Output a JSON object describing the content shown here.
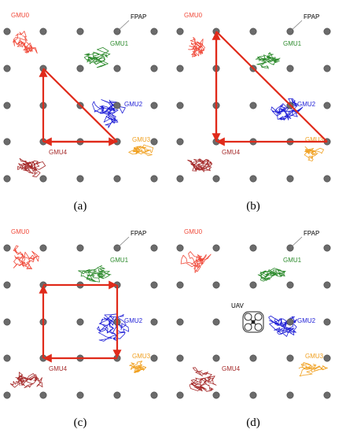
{
  "colors": {
    "gmu0": "#f04a3a",
    "gmu1": "#2e8b2e",
    "gmu2": "#1f1fd6",
    "gmu3": "#f0a020",
    "gmu4": "#a52a2a",
    "path": "#e02a1a",
    "fpap": "#6b6b6b"
  },
  "panels": [
    {
      "caption": "(a)",
      "fpap_label": "FPAP",
      "labels": {
        "gmu0": "GMU0",
        "gmu1": "GMU1",
        "gmu2": "GMU2",
        "gmu3": "GMU3",
        "gmu4": "GMU4"
      },
      "path_shape": "triangle-left"
    },
    {
      "caption": "(b)",
      "fpap_label": "FPAP",
      "labels": {
        "gmu0": "GMU0",
        "gmu1": "GMU1",
        "gmu2": "GMU2",
        "gmu3": "GMU3",
        "gmu4": "GMU4"
      },
      "path_shape": "triangle-large"
    },
    {
      "caption": "(c)",
      "fpap_label": "FPAP",
      "labels": {
        "gmu0": "GMU0",
        "gmu1": "GMU1",
        "gmu2": "GMU2",
        "gmu3": "GMU3",
        "gmu4": "GMU4"
      },
      "path_shape": "square"
    },
    {
      "caption": "(d)",
      "fpap_label": "FPAP",
      "labels": {
        "gmu0": "GMU0",
        "gmu1": "GMU1",
        "gmu2": "GMU2",
        "gmu3": "GMU3",
        "gmu4": "GMU4"
      },
      "uav_label": "UAV",
      "path_shape": "none"
    }
  ]
}
